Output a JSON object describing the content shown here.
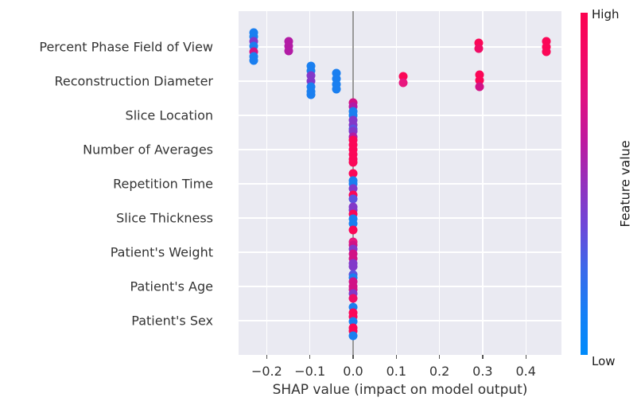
{
  "figure": {
    "background": "#ffffff",
    "plot_background": "#eaeaf2",
    "grid_color": "#ffffff",
    "zero_line_color": "#999999",
    "tick_color": "#555555",
    "text_color": "#333333"
  },
  "chart_data": {
    "type": "scatter",
    "subtype": "shap-beeswarm-summary",
    "title": "",
    "xlabel": "SHAP value (impact on model output)",
    "ylabel": "",
    "grid": true,
    "xlim": [
      -0.2652,
      0.4825
    ],
    "x_ticks": [
      -0.2,
      -0.1,
      0.0,
      0.1,
      0.2,
      0.3,
      0.4
    ],
    "x_tick_labels": [
      "−0.2",
      "−0.1",
      "0.0",
      "0.1",
      "0.2",
      "0.3",
      "0.4"
    ],
    "features": [
      "Percent Phase Field of View",
      "Reconstruction Diameter",
      "Slice Location",
      "Number of Averages",
      "Repetition Time",
      "Slice Thickness",
      "Patient's Weight",
      "Patient's Age",
      "Patient's Sex"
    ],
    "colorbar": {
      "label": "Feature value",
      "high_label": "High",
      "low_label": "Low",
      "gradient_top_to_bottom": [
        {
          "pos": 0,
          "color": "#fc0350"
        },
        {
          "pos": 12,
          "color": "#f30965"
        },
        {
          "pos": 25,
          "color": "#e01181"
        },
        {
          "pos": 38,
          "color": "#bd1aa0"
        },
        {
          "pos": 50,
          "color": "#9431bd"
        },
        {
          "pos": 62,
          "color": "#6f46d8"
        },
        {
          "pos": 75,
          "color": "#3b69ea"
        },
        {
          "pos": 88,
          "color": "#1580f6"
        },
        {
          "pos": 100,
          "color": "#008bfb"
        }
      ]
    },
    "palette": {
      "R": "#fb0757",
      "R2": "#ef0d66",
      "PK": "#e8177e",
      "M": "#d11286",
      "PM": "#b21ba5",
      "V": "#8238c9",
      "BV": "#5b53e0",
      "B": "#1a7ff0",
      "LB": "#0b8bfb"
    },
    "points_format": [
      "feature_index",
      "shap_value",
      "dy_px",
      "color_key"
    ],
    "points": [
      [
        0,
        -0.23,
        -18,
        "B"
      ],
      [
        0,
        -0.23,
        -13,
        "B"
      ],
      [
        0,
        -0.23,
        -7,
        "V"
      ],
      [
        0,
        -0.23,
        -1,
        "B"
      ],
      [
        0,
        -0.23,
        6,
        "M"
      ],
      [
        0,
        -0.23,
        12,
        "B"
      ],
      [
        0,
        -0.23,
        17,
        "B"
      ],
      [
        0,
        -0.149,
        -7,
        "PM"
      ],
      [
        0,
        -0.149,
        -1,
        "PM"
      ],
      [
        0,
        -0.149,
        5,
        "PM"
      ],
      [
        0,
        0.291,
        -5,
        "R"
      ],
      [
        0,
        0.291,
        2,
        "R2"
      ],
      [
        0,
        0.447,
        -7,
        "R"
      ],
      [
        0,
        0.447,
        0,
        "R"
      ],
      [
        0,
        0.447,
        6,
        "R"
      ],
      [
        1,
        -0.097,
        -19,
        "B"
      ],
      [
        1,
        -0.097,
        -13,
        "B"
      ],
      [
        1,
        -0.097,
        -7,
        "V"
      ],
      [
        1,
        -0.097,
        0,
        "V"
      ],
      [
        1,
        -0.097,
        7,
        "B"
      ],
      [
        1,
        -0.097,
        13,
        "B"
      ],
      [
        1,
        -0.097,
        17,
        "B"
      ],
      [
        1,
        -0.039,
        -10,
        "B"
      ],
      [
        1,
        -0.039,
        -3,
        "B"
      ],
      [
        1,
        -0.039,
        4,
        "B"
      ],
      [
        1,
        -0.039,
        10,
        "B"
      ],
      [
        1,
        0.116,
        -6,
        "R"
      ],
      [
        1,
        0.116,
        2,
        "PK"
      ],
      [
        1,
        0.292,
        -8,
        "R"
      ],
      [
        1,
        0.292,
        -1,
        "R"
      ],
      [
        1,
        0.292,
        7,
        "M"
      ],
      [
        2,
        0.0,
        -16,
        "M"
      ],
      [
        2,
        0.0,
        -11,
        "PM"
      ],
      [
        2,
        0.0,
        -5,
        "B"
      ],
      [
        2,
        0.0,
        0,
        "B"
      ],
      [
        2,
        0.0,
        6,
        "V"
      ],
      [
        2,
        0.0,
        12,
        "V"
      ],
      [
        2,
        0.0,
        17,
        "BV"
      ],
      [
        2,
        0.0,
        20,
        "V"
      ],
      [
        3,
        0.0,
        -16,
        "PM"
      ],
      [
        3,
        0.0,
        -12,
        "R"
      ],
      [
        3,
        0.0,
        -6,
        "R"
      ],
      [
        3,
        0.0,
        0,
        "R"
      ],
      [
        3,
        0.0,
        6,
        "R"
      ],
      [
        3,
        0.0,
        12,
        "R"
      ],
      [
        3,
        0.0,
        16,
        "R"
      ],
      [
        4,
        0.0,
        -13,
        "R"
      ],
      [
        4,
        0.0,
        -4,
        "B"
      ],
      [
        4,
        0.0,
        0,
        "B"
      ],
      [
        4,
        0.0,
        6,
        "V"
      ],
      [
        4,
        0.0,
        14,
        "R"
      ],
      [
        4,
        0.0,
        19,
        "BV"
      ],
      [
        5,
        0.0,
        -14,
        "V"
      ],
      [
        5,
        0.0,
        -10,
        "V"
      ],
      [
        5,
        0.0,
        -5,
        "R"
      ],
      [
        5,
        0.0,
        1,
        "B"
      ],
      [
        5,
        0.0,
        7,
        "B"
      ],
      [
        5,
        0.0,
        15,
        "R"
      ],
      [
        6,
        0.0,
        -13,
        "PK"
      ],
      [
        6,
        0.0,
        -9,
        "M"
      ],
      [
        6,
        0.0,
        -4,
        "V"
      ],
      [
        6,
        0.0,
        2,
        "M"
      ],
      [
        6,
        0.0,
        8,
        "M"
      ],
      [
        6,
        0.0,
        14,
        "V"
      ],
      [
        6,
        0.0,
        18,
        "V"
      ],
      [
        7,
        0.0,
        -15,
        "BV"
      ],
      [
        7,
        0.0,
        -11,
        "B"
      ],
      [
        7,
        0.0,
        -6,
        "M"
      ],
      [
        7,
        0.0,
        0,
        "M"
      ],
      [
        7,
        0.0,
        4,
        "M"
      ],
      [
        7,
        0.0,
        9,
        "V"
      ],
      [
        7,
        0.0,
        15,
        "R2"
      ],
      [
        8,
        0.0,
        -17,
        "B"
      ],
      [
        8,
        0.0,
        -10,
        "R"
      ],
      [
        8,
        0.0,
        -5,
        "R"
      ],
      [
        8,
        0.0,
        1,
        "B"
      ],
      [
        8,
        0.0,
        9,
        "R"
      ],
      [
        8,
        0.0,
        13,
        "R"
      ],
      [
        8,
        0.0,
        19,
        "B"
      ]
    ],
    "legend_position": "right-colorbar"
  }
}
